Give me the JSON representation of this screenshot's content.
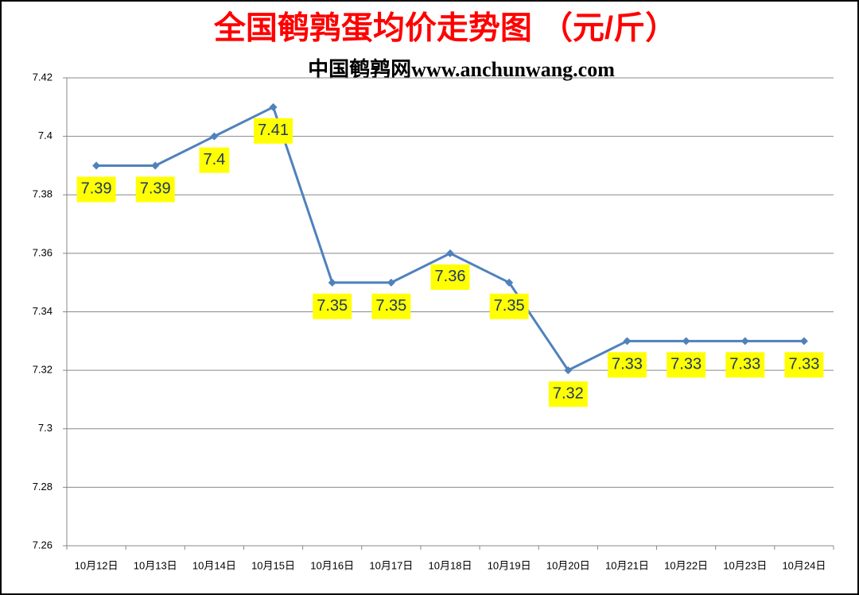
{
  "chart_data": {
    "type": "line",
    "title": "全国鹌鹑蛋均价走势图 （元/斤）",
    "subtitle": "中国鹌鹑网www.anchunwang.com",
    "categories": [
      "10月12日",
      "10月13日",
      "10月14日",
      "10月15日",
      "10月16日",
      "10月17日",
      "10月18日",
      "10月19日",
      "10月20日",
      "10月21日",
      "10月22日",
      "10月23日",
      "10月24日"
    ],
    "series": [
      {
        "color": "#4f81bd",
        "values": [
          7.39,
          7.39,
          7.4,
          7.41,
          7.35,
          7.35,
          7.36,
          7.35,
          7.32,
          7.33,
          7.33,
          7.33,
          7.33
        ]
      }
    ],
    "ylim": [
      7.26,
      7.42
    ],
    "yticks": [
      7.26,
      7.28,
      7.3,
      7.32,
      7.34,
      7.36,
      7.38,
      7.4,
      7.42
    ],
    "grid": true
  }
}
